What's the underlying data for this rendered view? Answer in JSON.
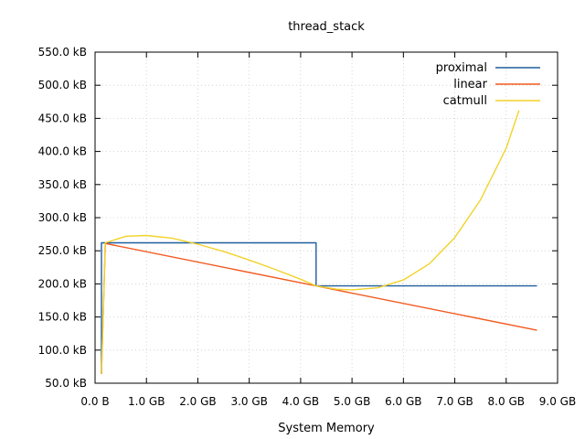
{
  "chart_data": {
    "type": "line",
    "title": "thread_stack",
    "xlabel": "System Memory",
    "ylabel": "",
    "xlim": [
      0,
      9
    ],
    "ylim": [
      50,
      550
    ],
    "x_unit": "GB",
    "y_unit": "kB",
    "x_ticks": [
      {
        "value": 0,
        "label": "0.0  B"
      },
      {
        "value": 1,
        "label": "1.0 GB"
      },
      {
        "value": 2,
        "label": "2.0 GB"
      },
      {
        "value": 3,
        "label": "3.0 GB"
      },
      {
        "value": 4,
        "label": "4.0 GB"
      },
      {
        "value": 5,
        "label": "5.0 GB"
      },
      {
        "value": 6,
        "label": "6.0 GB"
      },
      {
        "value": 7,
        "label": "7.0 GB"
      },
      {
        "value": 8,
        "label": "8.0 GB"
      },
      {
        "value": 9,
        "label": "9.0 GB"
      }
    ],
    "y_ticks": [
      {
        "value": 50,
        "label": "50.0 kB"
      },
      {
        "value": 100,
        "label": "100.0 kB"
      },
      {
        "value": 150,
        "label": "150.0 kB"
      },
      {
        "value": 200,
        "label": "200.0 kB"
      },
      {
        "value": 250,
        "label": "250.0 kB"
      },
      {
        "value": 300,
        "label": "300.0 kB"
      },
      {
        "value": 350,
        "label": "350.0 kB"
      },
      {
        "value": 400,
        "label": "400.0 kB"
      },
      {
        "value": 450,
        "label": "450.0 kB"
      },
      {
        "value": 500,
        "label": "500.0 kB"
      },
      {
        "value": 550,
        "label": "550.0 kB"
      }
    ],
    "grid": true,
    "legend_position": "top-right",
    "series": [
      {
        "name": "proximal",
        "color": "#1f5f9e",
        "points": [
          [
            0.125,
            64
          ],
          [
            0.125,
            262
          ],
          [
            4.3,
            262
          ],
          [
            4.3,
            197
          ],
          [
            8.6,
            197
          ]
        ]
      },
      {
        "name": "linear",
        "color": "#f25a1f",
        "points": [
          [
            0.125,
            64
          ],
          [
            0.2,
            261
          ],
          [
            4.3,
            197
          ],
          [
            8.6,
            130
          ]
        ]
      },
      {
        "name": "catmull",
        "color": "#f2d22a",
        "points": [
          [
            0.125,
            64
          ],
          [
            0.2,
            262
          ],
          [
            0.6,
            272
          ],
          [
            1.0,
            273
          ],
          [
            1.5,
            269
          ],
          [
            2.0,
            260
          ],
          [
            2.5,
            249
          ],
          [
            3.0,
            236
          ],
          [
            3.5,
            222
          ],
          [
            4.0,
            207
          ],
          [
            4.3,
            197
          ],
          [
            4.7,
            192
          ],
          [
            5.0,
            191
          ],
          [
            5.5,
            194
          ],
          [
            6.0,
            206
          ],
          [
            6.5,
            230
          ],
          [
            7.0,
            270
          ],
          [
            7.5,
            327
          ],
          [
            8.0,
            405
          ],
          [
            8.25,
            462
          ]
        ]
      }
    ]
  }
}
